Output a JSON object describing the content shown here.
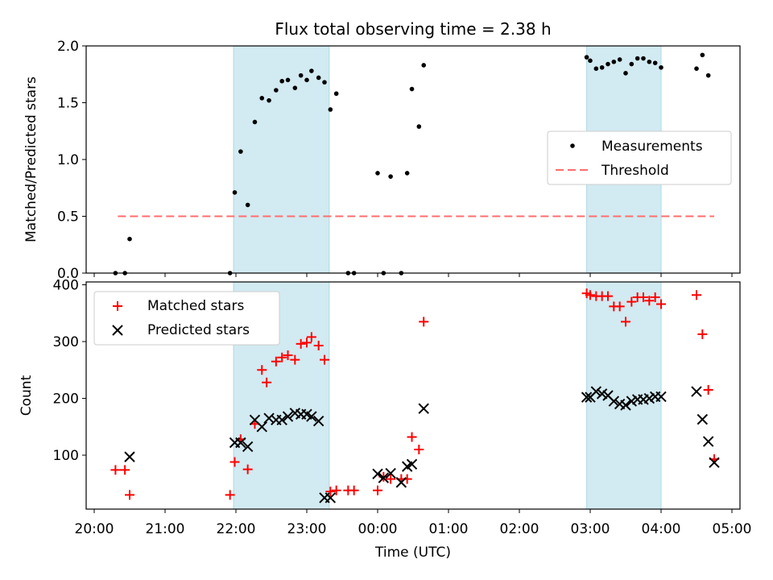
{
  "chart_data": {
    "title": "Flux total observing time = 2.38 h",
    "xlabel": "Time (UTC)",
    "x_tick_labels": [
      "20:00",
      "21:00",
      "22:00",
      "23:00",
      "00:00",
      "01:00",
      "02:00",
      "03:00",
      "04:00",
      "05:00"
    ],
    "shaded_intervals": [
      {
        "start": "21:58",
        "end": "23:19",
        "color": "#add8e6"
      },
      {
        "start": "02:57",
        "end": "04:00",
        "color": "#add8e6"
      }
    ],
    "panels": [
      {
        "type": "scatter",
        "ylabel": "Matched/Predicted stars",
        "ylim": [
          0,
          2.0
        ],
        "y_ticks": [
          0.0,
          0.5,
          1.0,
          1.5,
          2.0
        ],
        "y_tick_labels": [
          "0.0",
          "0.5",
          "1.0",
          "1.5",
          "2.0"
        ],
        "legend_position": "center-right",
        "series": [
          {
            "name": "Measurements",
            "marker": "dot",
            "color": "#000000",
            "points": [
              [
                "20:18",
                0.0
              ],
              [
                "20:26",
                0.0
              ],
              [
                "20:30",
                0.3
              ],
              [
                "21:55",
                0.0
              ],
              [
                "21:59",
                0.71
              ],
              [
                "22:04",
                1.07
              ],
              [
                "22:10",
                0.6
              ],
              [
                "22:16",
                1.33
              ],
              [
                "22:22",
                1.54
              ],
              [
                "22:28",
                1.52
              ],
              [
                "22:34",
                1.61
              ],
              [
                "22:39",
                1.69
              ],
              [
                "22:44",
                1.7
              ],
              [
                "22:50",
                1.63
              ],
              [
                "22:55",
                1.74
              ],
              [
                "23:00",
                1.7
              ],
              [
                "23:04",
                1.78
              ],
              [
                "23:10",
                1.72
              ],
              [
                "23:15",
                1.68
              ],
              [
                "23:20",
                1.44
              ],
              [
                "23:25",
                1.58
              ],
              [
                "23:35",
                0.0
              ],
              [
                "23:40",
                0.0
              ],
              [
                "00:00",
                0.88
              ],
              [
                "00:05",
                0.0
              ],
              [
                "00:11",
                0.85
              ],
              [
                "00:20",
                0.0
              ],
              [
                "00:25",
                0.88
              ],
              [
                "00:29",
                1.62
              ],
              [
                "00:35",
                1.29
              ],
              [
                "00:39",
                1.83
              ],
              [
                "02:57",
                1.9
              ],
              [
                "03:00",
                1.87
              ],
              [
                "03:05",
                1.8
              ],
              [
                "03:10",
                1.81
              ],
              [
                "03:15",
                1.84
              ],
              [
                "03:20",
                1.86
              ],
              [
                "03:25",
                1.88
              ],
              [
                "03:30",
                1.76
              ],
              [
                "03:35",
                1.84
              ],
              [
                "03:40",
                1.89
              ],
              [
                "03:45",
                1.89
              ],
              [
                "03:50",
                1.86
              ],
              [
                "03:55",
                1.85
              ],
              [
                "04:00",
                1.81
              ],
              [
                "04:30",
                1.8
              ],
              [
                "04:35",
                1.92
              ],
              [
                "04:40",
                1.74
              ],
              [
                "04:45",
                1.07
              ]
            ]
          },
          {
            "name": "Threshold",
            "marker": "dashed-line",
            "color": "#ff6e6e",
            "points": [
              [
                "20:20",
                0.5
              ],
              [
                "04:45",
                0.5
              ]
            ]
          }
        ]
      },
      {
        "type": "scatter",
        "ylabel": "Count",
        "ylim": [
          5,
          405
        ],
        "y_ticks": [
          100,
          200,
          300,
          400
        ],
        "y_tick_labels": [
          "100",
          "200",
          "300",
          "400"
        ],
        "legend_position": "top-left",
        "series": [
          {
            "name": "Matched stars",
            "marker": "plus",
            "color": "#ff0000",
            "points": [
              [
                "20:18",
                74
              ],
              [
                "20:26",
                74
              ],
              [
                "20:30",
                30
              ],
              [
                "21:55",
                30
              ],
              [
                "21:59",
                88
              ],
              [
                "22:04",
                128
              ],
              [
                "22:10",
                75
              ],
              [
                "22:16",
                155
              ],
              [
                "22:22",
                250
              ],
              [
                "22:26",
                228
              ],
              [
                "22:34",
                265
              ],
              [
                "22:39",
                272
              ],
              [
                "22:44",
                276
              ],
              [
                "22:50",
                268
              ],
              [
                "22:55",
                296
              ],
              [
                "23:00",
                298
              ],
              [
                "23:04",
                308
              ],
              [
                "23:10",
                293
              ],
              [
                "23:15",
                268
              ],
              [
                "23:20",
                36
              ],
              [
                "23:25",
                38
              ],
              [
                "23:35",
                38
              ],
              [
                "23:40",
                38
              ],
              [
                "00:00",
                38
              ],
              [
                "00:05",
                62
              ],
              [
                "00:11",
                58
              ],
              [
                "00:20",
                58
              ],
              [
                "00:25",
                58
              ],
              [
                "00:29",
                132
              ],
              [
                "00:35",
                110
              ],
              [
                "00:39",
                335
              ],
              [
                "02:57",
                385
              ],
              [
                "03:00",
                382
              ],
              [
                "03:05",
                380
              ],
              [
                "03:10",
                380
              ],
              [
                "03:15",
                380
              ],
              [
                "03:20",
                362
              ],
              [
                "03:25",
                362
              ],
              [
                "03:30",
                335
              ],
              [
                "03:35",
                370
              ],
              [
                "03:40",
                378
              ],
              [
                "03:45",
                378
              ],
              [
                "03:50",
                372
              ],
              [
                "03:55",
                378
              ],
              [
                "04:00",
                366
              ],
              [
                "04:30",
                382
              ],
              [
                "04:35",
                313
              ],
              [
                "04:40",
                215
              ],
              [
                "04:45",
                93
              ]
            ]
          },
          {
            "name": "Predicted stars",
            "marker": "x",
            "color": "#000000",
            "points": [
              [
                "20:30",
                97
              ],
              [
                "21:59",
                122
              ],
              [
                "22:04",
                122
              ],
              [
                "22:10",
                115
              ],
              [
                "22:16",
                162
              ],
              [
                "22:22",
                150
              ],
              [
                "22:28",
                165
              ],
              [
                "22:34",
                162
              ],
              [
                "22:39",
                162
              ],
              [
                "22:44",
                168
              ],
              [
                "22:50",
                174
              ],
              [
                "22:55",
                172
              ],
              [
                "23:00",
                172
              ],
              [
                "23:04",
                168
              ],
              [
                "23:10",
                160
              ],
              [
                "23:15",
                25
              ],
              [
                "23:20",
                25
              ],
              [
                "00:00",
                67
              ],
              [
                "00:05",
                60
              ],
              [
                "00:11",
                68
              ],
              [
                "00:20",
                52
              ],
              [
                "00:25",
                80
              ],
              [
                "00:29",
                84
              ],
              [
                "00:39",
                182
              ],
              [
                "02:57",
                202
              ],
              [
                "03:00",
                202
              ],
              [
                "03:05",
                212
              ],
              [
                "03:10",
                208
              ],
              [
                "03:15",
                205
              ],
              [
                "03:20",
                195
              ],
              [
                "03:25",
                190
              ],
              [
                "03:30",
                188
              ],
              [
                "03:35",
                195
              ],
              [
                "03:40",
                198
              ],
              [
                "03:45",
                198
              ],
              [
                "03:50",
                200
              ],
              [
                "03:55",
                203
              ],
              [
                "04:00",
                203
              ],
              [
                "04:30",
                212
              ],
              [
                "04:35",
                163
              ],
              [
                "04:40",
                124
              ],
              [
                "04:45",
                87
              ]
            ]
          }
        ]
      }
    ]
  }
}
